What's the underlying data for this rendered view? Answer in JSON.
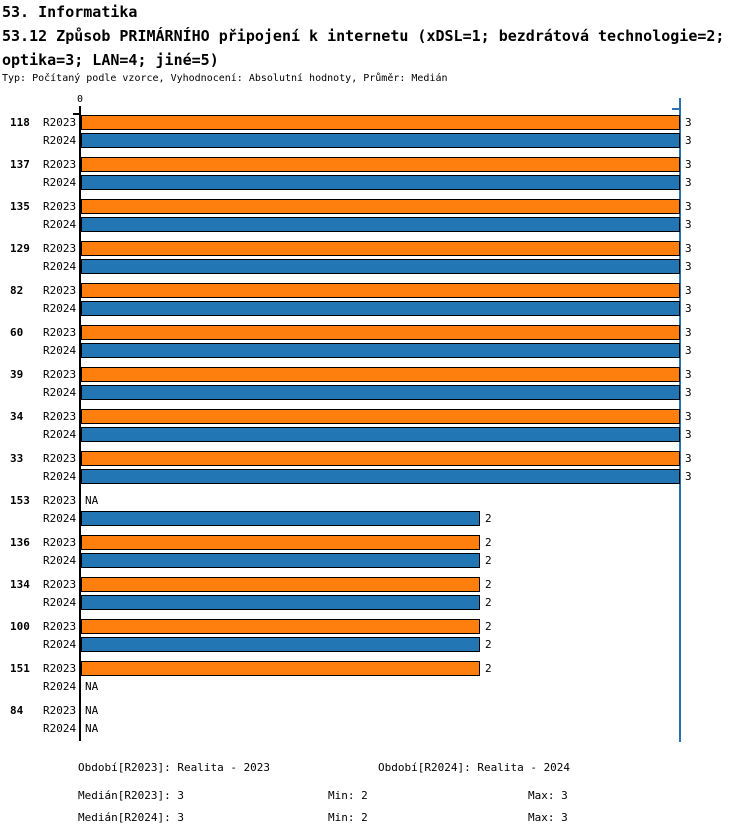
{
  "header": {
    "section_title": "53. Informatika",
    "question_title_line1": "53.12 Způsob PRIMÁRNÍHO připojení k internetu (xDSL=1; bezdrátová technologie=2;",
    "question_title_line2": "optika=3; LAN=4; jiné=5)",
    "meta": "Typ: Počítaný podle vzorce, Vyhodnocení: Absolutní hodnoty, Průměr: Medián"
  },
  "chart_data": {
    "type": "bar",
    "orientation": "horizontal",
    "title": "53.12 Způsob PRIMÁRNÍHO připojení k internetu (xDSL=1; bezdrátová technologie=2; optika=3; LAN=4; jiné=5)",
    "xlabel": "",
    "ylabel": "",
    "xlim": [
      0,
      3
    ],
    "axis_origin_label": "0",
    "na_label": "NA",
    "grid": false,
    "legend_position": "none",
    "reference_line_value": 3,
    "series_names": [
      "R2023",
      "R2024"
    ],
    "colors": {
      "R2023": "#ff7f0e",
      "R2024": "#2276b4",
      "reference_line": "#2a72ad",
      "axis": "#000000"
    },
    "groups": [
      {
        "id": "118",
        "R2023": 3,
        "R2024": 3
      },
      {
        "id": "137",
        "R2023": 3,
        "R2024": 3
      },
      {
        "id": "135",
        "R2023": 3,
        "R2024": 3
      },
      {
        "id": "129",
        "R2023": 3,
        "R2024": 3
      },
      {
        "id": "82",
        "R2023": 3,
        "R2024": 3
      },
      {
        "id": "60",
        "R2023": 3,
        "R2024": 3
      },
      {
        "id": "39",
        "R2023": 3,
        "R2024": 3
      },
      {
        "id": "34",
        "R2023": 3,
        "R2024": 3
      },
      {
        "id": "33",
        "R2023": 3,
        "R2024": 3
      },
      {
        "id": "153",
        "R2023": null,
        "R2024": 2
      },
      {
        "id": "136",
        "R2023": 2,
        "R2024": 2
      },
      {
        "id": "134",
        "R2023": 2,
        "R2024": 2
      },
      {
        "id": "100",
        "R2023": 2,
        "R2024": 2
      },
      {
        "id": "151",
        "R2023": 2,
        "R2024": null
      },
      {
        "id": "84",
        "R2023": null,
        "R2024": null
      }
    ]
  },
  "footer": {
    "period_r2023": "Období[R2023]: Realita - 2023",
    "period_r2024": "Období[R2024]: Realita - 2024",
    "median_r2023": "Medián[R2023]: 3",
    "median_r2024": "Medián[R2024]: 3",
    "min_r2023": "Min: 2",
    "min_r2024": "Min: 2",
    "max_r2023": "Max: 3",
    "max_r2024": "Max: 3"
  }
}
